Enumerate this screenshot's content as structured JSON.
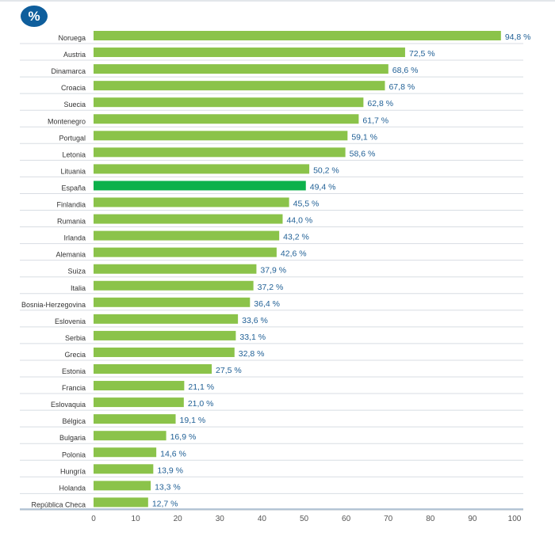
{
  "badge": "%",
  "chart_data": {
    "type": "bar",
    "orientation": "horizontal",
    "unit": "%",
    "categories": [
      "Noruega",
      "Austria",
      "Dinamarca",
      "Croacia",
      "Suecia",
      "Montenegro",
      "Portugal",
      "Letonia",
      "Lituania",
      "España",
      "Finlandia",
      "Rumania",
      "Irlanda",
      "Alemania",
      "Suiza",
      "Italia",
      "Bosnia-Herzegovina",
      "Eslovenia",
      "Serbia",
      "Grecia",
      "Estonia",
      "Francia",
      "Eslovaquia",
      "Bélgica",
      "Bulgaria",
      "Polonia",
      "Hungría",
      "Holanda",
      "República Checa"
    ],
    "values": [
      94.8,
      72.5,
      68.6,
      67.8,
      62.8,
      61.7,
      59.1,
      58.6,
      50.2,
      49.4,
      45.5,
      44.0,
      43.2,
      42.6,
      37.9,
      37.2,
      36.4,
      33.6,
      33.1,
      32.8,
      27.5,
      21.1,
      21.0,
      19.1,
      16.9,
      14.6,
      13.9,
      13.3,
      12.7
    ],
    "value_labels": [
      "94,8 %",
      "72,5 %",
      "68,6 %",
      "67,8 %",
      "62,8 %",
      "61,7 %",
      "59,1 %",
      "58,6 %",
      "50,2 %",
      "49,4 %",
      "45,5 %",
      "44,0 %",
      "43,2 %",
      "42,6 %",
      "37,9 %",
      "37,2 %",
      "36,4 %",
      "33,6 %",
      "33,1 %",
      "32,8 %",
      "27,5 %",
      "21,1 %",
      "21,0 %",
      "19,1 %",
      "16,9 %",
      "14,6 %",
      "13,9 %",
      "13,3 %",
      "12,7 %"
    ],
    "xlim": [
      0,
      100
    ],
    "xticks": [
      "0",
      "10",
      "20",
      "30",
      "40",
      "50",
      "60",
      "70",
      "80",
      "90",
      "100"
    ],
    "grid": false,
    "colors": {
      "bar": "#8bc34a",
      "highlight": "#0db14b",
      "value_text": "#1f5f95",
      "badge": "#0f5e9c"
    },
    "highlight": "España"
  }
}
